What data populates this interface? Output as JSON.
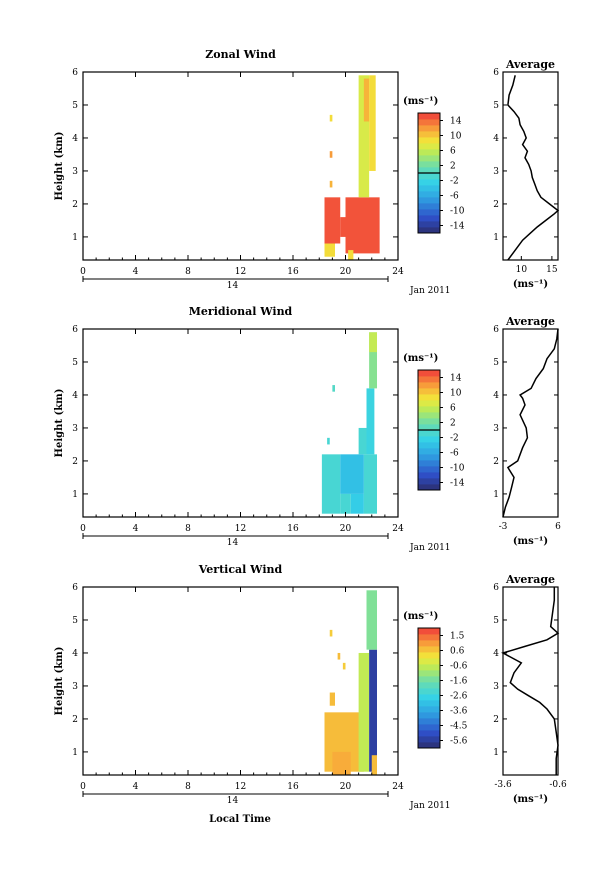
{
  "figure": {
    "date_label": "Jan 2011",
    "day_label": "14",
    "xlabel": "Local Time",
    "ylabel": "Height (km)",
    "unit_label": "(ms⁻¹)",
    "avg_unit_label": "(ms⁻¹)"
  },
  "chart_data": [
    {
      "type": "heatmap",
      "title": "Zonal Wind",
      "xlabel": "",
      "ylabel": "Height (km)",
      "xlim": [
        0,
        24
      ],
      "ylim": [
        0.3,
        6
      ],
      "xticks": [
        0,
        4,
        8,
        12,
        16,
        20,
        24
      ],
      "yticks": [
        1,
        2,
        3,
        4,
        5,
        6
      ],
      "cells": [
        {
          "t0": 18.4,
          "t1": 19.2,
          "z0": 0.4,
          "z1": 0.8,
          "v": 9
        },
        {
          "t0": 18.4,
          "t1": 19.6,
          "z0": 0.8,
          "z1": 2.2,
          "v": 15
        },
        {
          "t0": 19.6,
          "t1": 20.2,
          "z0": 1.0,
          "z1": 1.6,
          "v": 15
        },
        {
          "t0": 20.0,
          "t1": 22.6,
          "z0": 0.5,
          "z1": 2.2,
          "v": 15
        },
        {
          "t0": 18.8,
          "t1": 19.0,
          "z0": 2.5,
          "z1": 2.7,
          "v": 11
        },
        {
          "t0": 20.2,
          "t1": 20.6,
          "z0": 0.3,
          "z1": 0.6,
          "v": 9
        },
        {
          "t0": 21.0,
          "t1": 21.8,
          "z0": 2.2,
          "z1": 5.9,
          "v": 7
        },
        {
          "t0": 21.8,
          "t1": 22.3,
          "z0": 3.0,
          "z1": 5.9,
          "v": 9
        },
        {
          "t0": 21.4,
          "t1": 21.8,
          "z0": 4.5,
          "z1": 5.8,
          "v": 11
        },
        {
          "t0": 18.8,
          "t1": 19.0,
          "z0": 3.4,
          "z1": 3.6,
          "v": 12
        },
        {
          "t0": 18.8,
          "t1": 19.0,
          "z0": 4.5,
          "z1": 4.7,
          "v": 9
        }
      ],
      "colorbar": {
        "label": "(ms⁻¹)",
        "ticks": [
          "14",
          "10",
          "6",
          "2",
          "-2",
          "-6",
          "-10",
          "-14"
        ],
        "min": -16,
        "max": 16,
        "zero_line": true
      },
      "average": {
        "title": "Average",
        "xlim": [
          7,
          16
        ],
        "xticks": [
          "10",
          "15"
        ],
        "xlabel": "(ms⁻¹)",
        "profile": [
          [
            7.8,
            0.3
          ],
          [
            8.6,
            0.5
          ],
          [
            9.4,
            0.7
          ],
          [
            10.2,
            0.9
          ],
          [
            11.4,
            1.1
          ],
          [
            12.6,
            1.3
          ],
          [
            14.0,
            1.5
          ],
          [
            15.4,
            1.7
          ],
          [
            16.0,
            1.8
          ],
          [
            14.6,
            2.0
          ],
          [
            13.2,
            2.2
          ],
          [
            12.6,
            2.4
          ],
          [
            12.2,
            2.6
          ],
          [
            11.8,
            2.8
          ],
          [
            11.6,
            3.0
          ],
          [
            11.2,
            3.2
          ],
          [
            10.6,
            3.4
          ],
          [
            11.0,
            3.6
          ],
          [
            10.2,
            3.8
          ],
          [
            10.8,
            4.0
          ],
          [
            10.4,
            4.2
          ],
          [
            9.8,
            4.4
          ],
          [
            9.6,
            4.6
          ],
          [
            8.8,
            4.8
          ],
          [
            7.8,
            5.0
          ],
          [
            8.0,
            5.3
          ],
          [
            8.6,
            5.6
          ],
          [
            9.0,
            5.9
          ]
        ]
      }
    },
    {
      "type": "heatmap",
      "title": "Meridional Wind",
      "xlabel": "",
      "ylabel": "Height (km)",
      "xlim": [
        0,
        24
      ],
      "ylim": [
        0.3,
        6
      ],
      "xticks": [
        0,
        4,
        8,
        12,
        16,
        20,
        24
      ],
      "yticks": [
        1,
        2,
        3,
        4,
        5,
        6
      ],
      "cells": [
        {
          "t0": 18.2,
          "t1": 19.6,
          "z0": 0.4,
          "z1": 2.2,
          "v": -1
        },
        {
          "t0": 19.6,
          "t1": 21.4,
          "z0": 1.0,
          "z1": 2.2,
          "v": -4
        },
        {
          "t0": 19.6,
          "t1": 20.4,
          "z0": 0.4,
          "z1": 1.0,
          "v": -1
        },
        {
          "t0": 20.4,
          "t1": 21.4,
          "z0": 0.4,
          "z1": 1.0,
          "v": -3
        },
        {
          "t0": 21.4,
          "t1": 22.4,
          "z0": 0.4,
          "z1": 2.2,
          "v": -1
        },
        {
          "t0": 21.6,
          "t1": 22.2,
          "z0": 2.2,
          "z1": 4.2,
          "v": -2
        },
        {
          "t0": 21.0,
          "t1": 21.6,
          "z0": 2.2,
          "z1": 3.0,
          "v": -1
        },
        {
          "t0": 21.8,
          "t1": 22.4,
          "z0": 4.2,
          "z1": 5.9,
          "v": 3
        },
        {
          "t0": 21.8,
          "t1": 22.4,
          "z0": 5.3,
          "z1": 5.9,
          "v": 6
        },
        {
          "t0": 18.6,
          "t1": 18.8,
          "z0": 2.5,
          "z1": 2.7,
          "v": -1
        },
        {
          "t0": 19.0,
          "t1": 19.2,
          "z0": 4.1,
          "z1": 4.3,
          "v": 0
        }
      ],
      "colorbar": {
        "label": "(ms⁻¹)",
        "ticks": [
          "14",
          "10",
          "6",
          "2",
          "-2",
          "-6",
          "-10",
          "-14"
        ],
        "min": -16,
        "max": 16,
        "zero_line": true
      },
      "average": {
        "title": "Average",
        "xlim": [
          -3,
          6
        ],
        "xticks": [
          "-3",
          "6"
        ],
        "xlabel": "(ms⁻¹)",
        "profile": [
          [
            -3.0,
            0.3
          ],
          [
            -2.6,
            0.6
          ],
          [
            -2.0,
            0.9
          ],
          [
            -1.6,
            1.2
          ],
          [
            -1.2,
            1.5
          ],
          [
            -2.2,
            1.8
          ],
          [
            -0.6,
            2.0
          ],
          [
            0.2,
            2.4
          ],
          [
            1.0,
            2.7
          ],
          [
            0.8,
            3.0
          ],
          [
            -0.2,
            3.4
          ],
          [
            0.6,
            3.7
          ],
          [
            0.2,
            3.9
          ],
          [
            -0.2,
            4.0
          ],
          [
            1.6,
            4.2
          ],
          [
            2.4,
            4.5
          ],
          [
            3.6,
            4.8
          ],
          [
            4.2,
            5.1
          ],
          [
            5.4,
            5.4
          ],
          [
            5.8,
            5.7
          ],
          [
            6.0,
            6.0
          ]
        ]
      }
    },
    {
      "type": "heatmap",
      "title": "Vertical Wind",
      "xlabel": "Local Time",
      "ylabel": "Height (km)",
      "xlim": [
        0,
        24
      ],
      "ylim": [
        0.3,
        6
      ],
      "xticks": [
        0,
        4,
        8,
        12,
        16,
        20,
        24
      ],
      "yticks": [
        1,
        2,
        3,
        4,
        5,
        6
      ],
      "cells": [
        {
          "t0": 18.4,
          "t1": 21.4,
          "z0": 0.4,
          "z1": 2.2,
          "v": 0.6
        },
        {
          "t0": 19.0,
          "t1": 20.4,
          "z0": 0.3,
          "z1": 1.0,
          "v": 0.8
        },
        {
          "t0": 21.0,
          "t1": 21.8,
          "z0": 0.4,
          "z1": 4.0,
          "v": -0.6
        },
        {
          "t0": 21.8,
          "t1": 22.4,
          "z0": 0.4,
          "z1": 4.1,
          "v": -5.6
        },
        {
          "t0": 21.6,
          "t1": 22.4,
          "z0": 4.1,
          "z1": 5.9,
          "v": -1.4
        },
        {
          "t0": 22.0,
          "t1": 22.4,
          "z0": 0.3,
          "z1": 0.9,
          "v": 0.6
        },
        {
          "t0": 18.8,
          "t1": 19.2,
          "z0": 2.4,
          "z1": 2.8,
          "v": 0.6
        },
        {
          "t0": 19.8,
          "t1": 20.0,
          "z0": 3.5,
          "z1": 3.7,
          "v": 0.4
        },
        {
          "t0": 19.4,
          "t1": 19.6,
          "z0": 3.8,
          "z1": 4.0,
          "v": 0.6
        },
        {
          "t0": 18.8,
          "t1": 19.0,
          "z0": 4.5,
          "z1": 4.7,
          "v": 0.4
        }
      ],
      "colorbar": {
        "label": "(ms⁻¹)",
        "ticks": [
          "1.5",
          "0.6",
          "-0.6",
          "-1.6",
          "-2.6",
          "-3.6",
          "-4.5",
          "-5.6"
        ],
        "min": -6.2,
        "max": 2.0,
        "zero_line": false
      },
      "average": {
        "title": "Average",
        "xlim": [
          -3.6,
          -0.6
        ],
        "xticks": [
          "-3.6",
          "-0.6"
        ],
        "xlabel": "(ms⁻¹)",
        "profile": [
          [
            -0.7,
            0.3
          ],
          [
            -0.7,
            0.8
          ],
          [
            -0.6,
            1.2
          ],
          [
            -0.7,
            1.6
          ],
          [
            -0.8,
            2.0
          ],
          [
            -1.2,
            2.3
          ],
          [
            -1.6,
            2.5
          ],
          [
            -2.2,
            2.7
          ],
          [
            -2.8,
            2.9
          ],
          [
            -3.2,
            3.1
          ],
          [
            -3.0,
            3.4
          ],
          [
            -2.6,
            3.7
          ],
          [
            -3.6,
            4.0
          ],
          [
            -2.4,
            4.2
          ],
          [
            -1.2,
            4.4
          ],
          [
            -0.6,
            4.6
          ],
          [
            -1.0,
            4.8
          ],
          [
            -0.9,
            5.2
          ],
          [
            -0.8,
            5.6
          ],
          [
            -0.8,
            6.0
          ]
        ]
      }
    }
  ]
}
